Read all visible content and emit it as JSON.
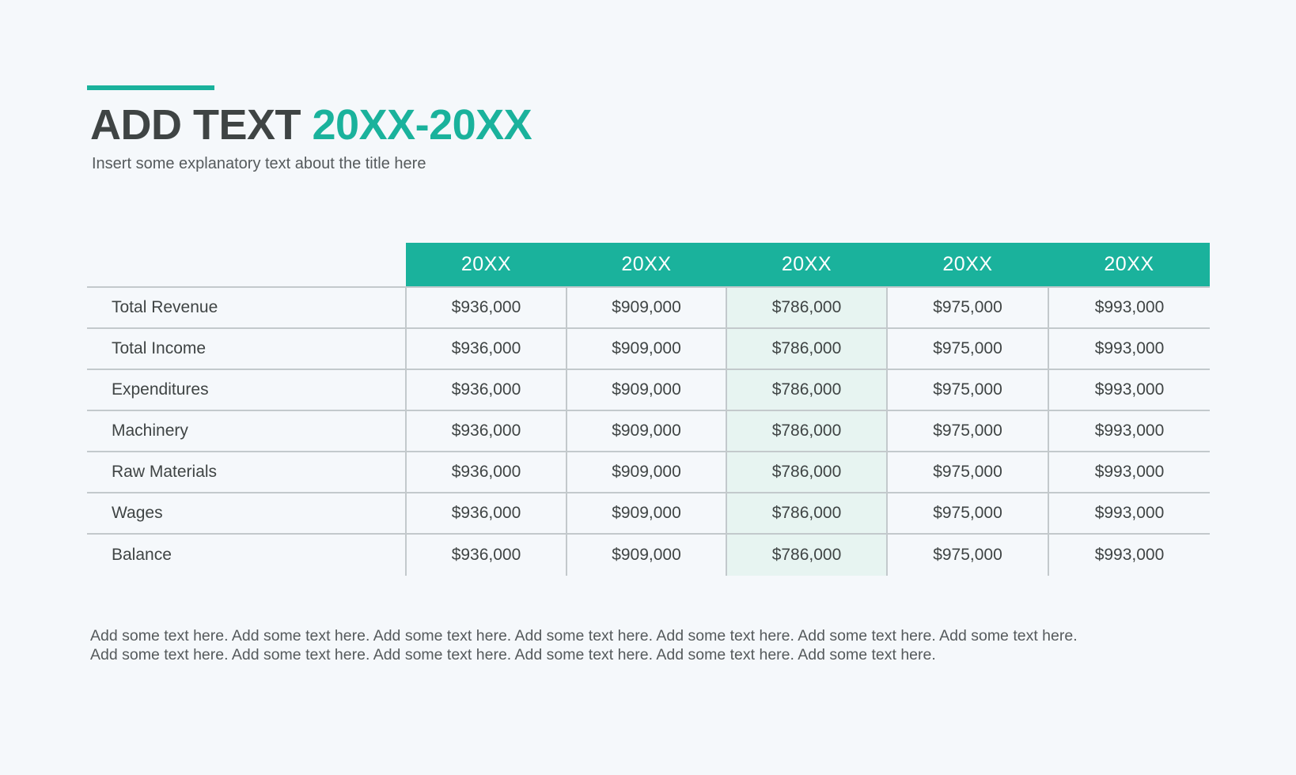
{
  "header": {
    "title_part1": "ADD TEXT",
    "title_part2": "20XX-20XX",
    "subtitle": "Insert some explanatory text about the title here"
  },
  "table": {
    "columns": [
      "20XX",
      "20XX",
      "20XX",
      "20XX",
      "20XX"
    ],
    "highlighted_column_index": 2,
    "rows": [
      {
        "label": "Total Revenue",
        "values": [
          "$936,000",
          "$909,000",
          "$786,000",
          "$975,000",
          "$993,000"
        ]
      },
      {
        "label": "Total Income",
        "values": [
          "$936,000",
          "$909,000",
          "$786,000",
          "$975,000",
          "$993,000"
        ]
      },
      {
        "label": "Expenditures",
        "values": [
          "$936,000",
          "$909,000",
          "$786,000",
          "$975,000",
          "$993,000"
        ]
      },
      {
        "label": "Machinery",
        "values": [
          "$936,000",
          "$909,000",
          "$786,000",
          "$975,000",
          "$993,000"
        ]
      },
      {
        "label": "Raw Materials",
        "values": [
          "$936,000",
          "$909,000",
          "$786,000",
          "$975,000",
          "$993,000"
        ]
      },
      {
        "label": "Wages",
        "values": [
          "$936,000",
          "$909,000",
          "$786,000",
          "$975,000",
          "$993,000"
        ]
      },
      {
        "label": "Balance",
        "values": [
          "$936,000",
          "$909,000",
          "$786,000",
          "$975,000",
          "$993,000"
        ]
      }
    ]
  },
  "footer": {
    "line1": "Add some text here. Add some text here. Add some text here. Add some text here. Add some text here. Add some text here. Add some text here.",
    "line2": "Add some text here.  Add some text here.  Add some text here.  Add some text here.  Add some text here.  Add some text here."
  },
  "colors": {
    "accent": "#1ab29c",
    "highlight": "#e7f4f1",
    "background": "#f5f8fb",
    "text": "#3f4444"
  }
}
